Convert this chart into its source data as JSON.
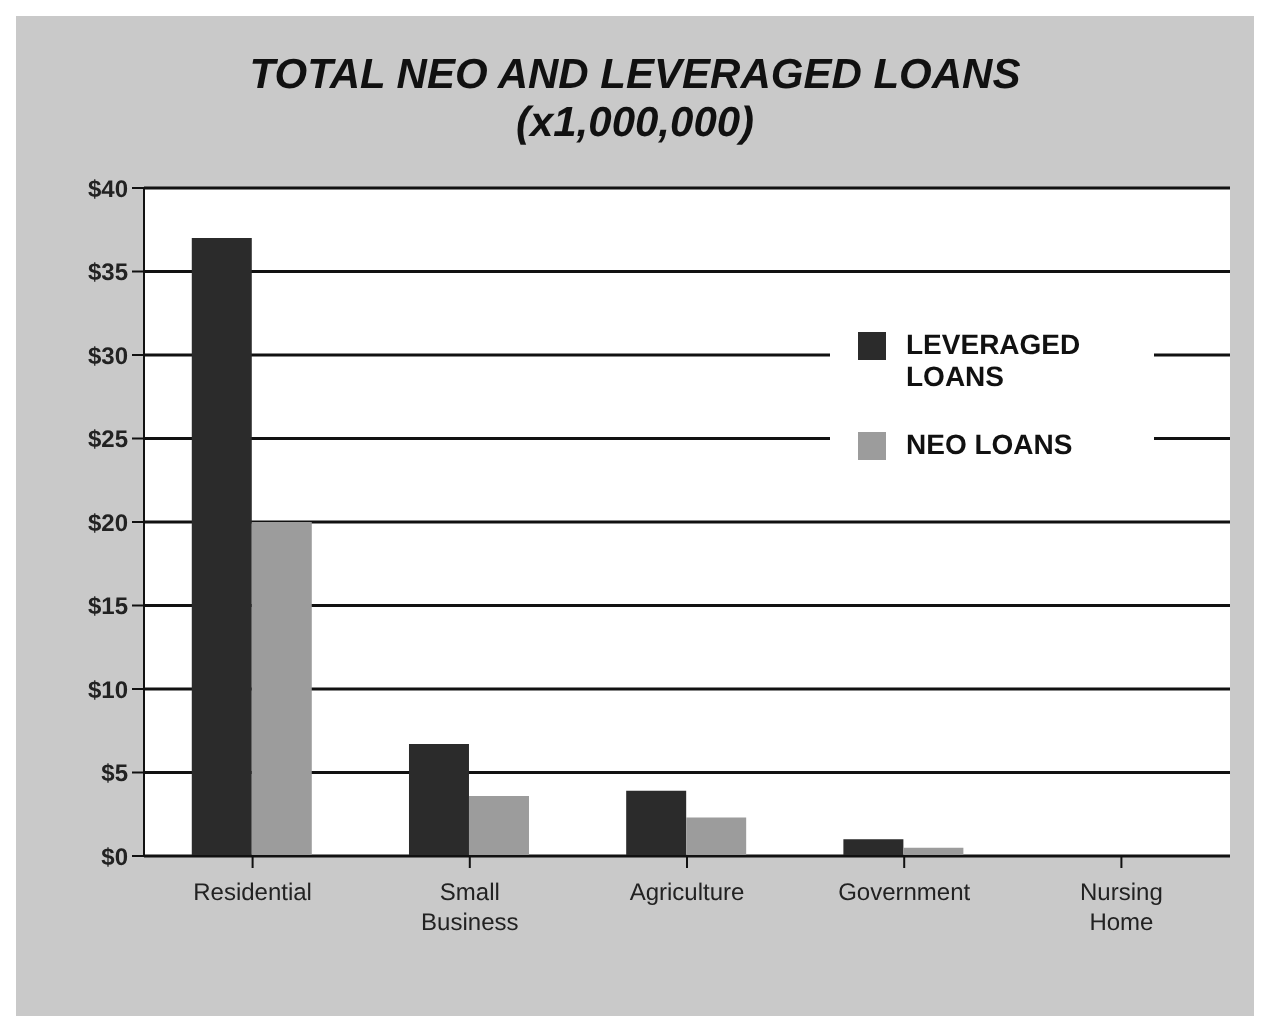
{
  "chart_data": {
    "type": "bar",
    "title": "TOTAL NEO AND LEVERAGED LOANS",
    "subtitle": "(x1,000,000)",
    "categories": [
      "Residential",
      "Small Business",
      "Agriculture",
      "Government",
      "Nursing Home"
    ],
    "series": [
      {
        "name": "LEVERAGED LOANS",
        "color": "#2b2b2b",
        "values": [
          37,
          6.7,
          3.9,
          1,
          null
        ]
      },
      {
        "name": "NEO LOANS",
        "color": "#9c9c9c",
        "values": [
          20,
          3.6,
          2.3,
          0.5,
          null
        ]
      }
    ],
    "ylim": [
      0,
      40
    ],
    "yticks": [
      {
        "value": 0,
        "label": "$0"
      },
      {
        "value": 5,
        "label": "$5"
      },
      {
        "value": 10,
        "label": "$10"
      },
      {
        "value": 15,
        "label": "$15"
      },
      {
        "value": 20,
        "label": "$20"
      },
      {
        "value": 25,
        "label": "$25"
      },
      {
        "value": 30,
        "label": "$30"
      },
      {
        "value": 35,
        "label": "$35"
      },
      {
        "value": 40,
        "label": "$40"
      }
    ],
    "grid": "y",
    "legend": "top right"
  }
}
